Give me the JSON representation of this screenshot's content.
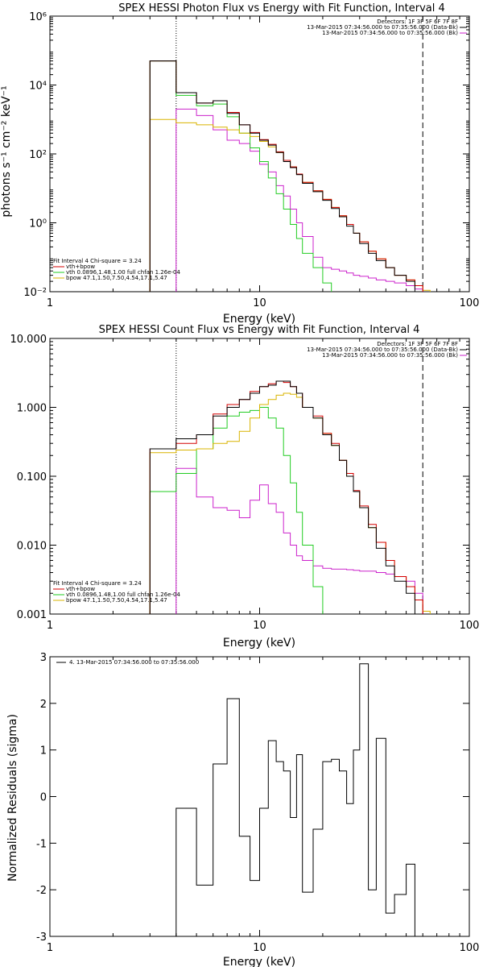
{
  "colors": {
    "data": "#000000",
    "total": "#d40000",
    "vth": "#22cc22",
    "bpow": "#d9b400",
    "bk": "#cc22cc"
  },
  "chart_data": [
    {
      "type": "line",
      "title": "SPEX HESSI Photon Flux vs Energy with Fit Function, Interval 4",
      "xlabel": "Energy (keV)",
      "ylabel": "photons s⁻¹ cm⁻² keV⁻¹",
      "x_scale": "log",
      "y_scale": "log",
      "xlim": [
        1,
        100
      ],
      "ylim": [
        0.01,
        1000000
      ],
      "x_ticks": [
        1,
        10,
        100
      ],
      "x_tick_labels": [
        "1",
        "10",
        "100"
      ],
      "y_ticks": [
        0.01,
        1,
        100,
        10000,
        1000000
      ],
      "y_tick_labels": [
        "10⁻²",
        "10⁰",
        "10²",
        "10⁴",
        "10⁶"
      ],
      "vlines": [
        4,
        60
      ],
      "legend_top": [
        "Detectors: 1F 3F 5F 6F 7F 8F",
        "13-Mar-2015 07:34:56.000 to 07:35:56.000 (Data-Bk)",
        "13-Mar-2015 07:34:56.000 to 07:35:56.000 (Bk)"
      ],
      "legend_bottom": [
        "Fit Interval 4   Chi-square = 3.24",
        "vth+bpow",
        "vth 0.0896,1.48,1.00  full chfan 1.26e-04",
        "bpow 47.1,1.50,7.50,4.54,17.1,5.47"
      ],
      "edges": [
        3,
        4,
        5,
        6,
        7,
        8,
        9,
        10,
        11,
        12,
        13,
        14,
        15,
        16,
        18,
        20,
        22,
        24,
        26,
        28,
        30,
        33,
        36,
        40,
        44,
        50,
        55,
        60,
        65,
        70
      ],
      "series": [
        {
          "name": "Data-Bk",
          "color_key": "data",
          "values": [
            50000,
            6000,
            3000,
            3500,
            1500,
            700,
            400,
            250,
            180,
            110,
            60,
            40,
            25,
            14,
            8,
            4.5,
            2.6,
            1.5,
            0.8,
            0.5,
            0.25,
            0.13,
            0.08,
            0.05,
            0.03,
            0.02,
            null,
            null,
            null
          ]
        },
        {
          "name": "vth+bpow",
          "color_key": "total",
          "values": [
            50000,
            6000,
            3000,
            3500,
            1600,
            700,
            420,
            260,
            190,
            115,
            65,
            42,
            26,
            15,
            8.5,
            4.8,
            2.8,
            1.6,
            0.9,
            0.5,
            0.28,
            0.15,
            0.09,
            0.05,
            0.03,
            0.022,
            0.015,
            null,
            null
          ]
        },
        {
          "name": "vth",
          "color_key": "vth",
          "values": [
            50000,
            5000,
            2500,
            2800,
            1200,
            400,
            150,
            60,
            20,
            7,
            2.5,
            0.9,
            0.35,
            0.13,
            0.05,
            0.018,
            null,
            null,
            null,
            null,
            null,
            null,
            null,
            null,
            null,
            null,
            null,
            null,
            null
          ]
        },
        {
          "name": "bpow",
          "color_key": "bpow",
          "values": [
            1000,
            800,
            700,
            600,
            500,
            400,
            320,
            230,
            160,
            110,
            65,
            42,
            26,
            15,
            8.5,
            4.8,
            2.8,
            1.6,
            0.9,
            0.5,
            0.28,
            0.15,
            0.09,
            0.05,
            0.03,
            0.022,
            0.015,
            0.011,
            null
          ]
        },
        {
          "name": "Bk",
          "color_key": "bk",
          "values": [
            null,
            2000,
            1300,
            500,
            250,
            200,
            120,
            50,
            30,
            12,
            6,
            2.5,
            1,
            0.4,
            0.1,
            0.05,
            0.045,
            0.04,
            0.035,
            0.03,
            0.028,
            0.025,
            0.022,
            0.02,
            0.018,
            0.015,
            0.012,
            null,
            null
          ]
        }
      ]
    },
    {
      "type": "line",
      "title": "SPEX HESSI Count Flux vs Energy with Fit Function, Interval 4",
      "xlabel": "Energy (keV)",
      "ylabel": "",
      "x_scale": "log",
      "y_scale": "log",
      "xlim": [
        1,
        100
      ],
      "ylim": [
        0.001,
        10
      ],
      "x_ticks": [
        1,
        10,
        100
      ],
      "x_tick_labels": [
        "1",
        "10",
        "100"
      ],
      "y_ticks": [
        0.001,
        0.01,
        0.1,
        1,
        10
      ],
      "y_tick_labels": [
        "0.001",
        "0.010",
        "0.100",
        "1.000",
        "10.000"
      ],
      "vlines": [
        4,
        60
      ],
      "legend_top": [
        "Detectors: 1F 3F 5F 6F 7F 8F",
        "13-Mar-2015 07:34:56.000 to 07:35:56.000 (Data-Bk)",
        "13-Mar-2015 07:34:56.000 to 07:35:56.000 (Bk)"
      ],
      "legend_bottom": [
        "Fit Interval 4   Chi-square = 3.24",
        "vth+bpow",
        "vth 0.0896,1.48,1.00  full chfan 1.26e-04",
        "bpow 47.1,1.50,7.50,4.54,17.1,5.47"
      ],
      "edges": [
        3,
        4,
        5,
        6,
        7,
        8,
        9,
        10,
        11,
        12,
        13,
        14,
        15,
        16,
        18,
        20,
        22,
        24,
        26,
        28,
        30,
        33,
        36,
        40,
        44,
        50,
        55,
        60,
        65,
        70
      ],
      "series": [
        {
          "name": "Data-Bk",
          "color_key": "data",
          "values": [
            0.25,
            0.35,
            0.4,
            0.75,
            1.0,
            1.3,
            1.6,
            2.0,
            2.1,
            2.4,
            2.4,
            2.0,
            1.6,
            1.0,
            0.7,
            0.4,
            0.28,
            0.17,
            0.1,
            0.06,
            0.035,
            0.018,
            0.009,
            0.005,
            0.003,
            0.002,
            null,
            null,
            null
          ]
        },
        {
          "name": "vth+bpow",
          "color_key": "total",
          "values": [
            0.25,
            0.3,
            0.4,
            0.8,
            1.1,
            1.3,
            1.7,
            2.0,
            2.2,
            2.4,
            2.3,
            2.0,
            1.6,
            1.0,
            0.75,
            0.42,
            0.3,
            0.17,
            0.11,
            0.062,
            0.037,
            0.02,
            0.011,
            0.006,
            0.0035,
            0.0025,
            0.0016,
            null,
            null
          ]
        },
        {
          "name": "vth",
          "color_key": "vth",
          "values": [
            0.06,
            0.11,
            0.25,
            0.5,
            0.75,
            0.85,
            0.9,
            1.0,
            0.7,
            0.5,
            0.2,
            0.08,
            0.03,
            0.01,
            0.0025,
            null,
            null,
            null,
            null,
            null,
            null,
            null,
            null,
            null,
            null,
            null,
            null,
            null,
            null
          ]
        },
        {
          "name": "bpow",
          "color_key": "bpow",
          "values": [
            0.22,
            0.24,
            0.25,
            0.3,
            0.32,
            0.45,
            0.7,
            1.1,
            1.3,
            1.5,
            1.6,
            1.55,
            1.4,
            1.0,
            0.7,
            0.42,
            0.28,
            0.17,
            0.1,
            0.06,
            0.035,
            0.018,
            0.011,
            0.006,
            0.0035,
            0.0025,
            0.0016,
            0.0011,
            null
          ]
        },
        {
          "name": "Bk",
          "color_key": "bk",
          "values": [
            null,
            0.13,
            0.05,
            0.035,
            0.032,
            0.025,
            0.045,
            0.075,
            0.04,
            0.03,
            0.015,
            0.01,
            0.007,
            0.006,
            0.005,
            0.0046,
            0.0045,
            0.0045,
            0.0044,
            0.0043,
            0.0042,
            0.0042,
            0.004,
            0.0038,
            0.0035,
            0.003,
            0.002,
            null,
            null
          ]
        }
      ]
    },
    {
      "type": "line",
      "title": "",
      "xlabel": "Energy (keV)",
      "ylabel": "Normalized Residuals (sigma)",
      "x_scale": "log",
      "y_scale": "linear",
      "xlim": [
        1,
        100
      ],
      "ylim": [
        -3,
        3
      ],
      "x_ticks": [
        1,
        10,
        100
      ],
      "x_tick_labels": [
        "1",
        "10",
        "100"
      ],
      "y_ticks": [
        -3,
        -2,
        -1,
        0,
        1,
        2,
        3
      ],
      "y_tick_labels": [
        "-3",
        "-2",
        "-1",
        "0",
        "1",
        "2",
        "3"
      ],
      "legend_top": [
        "4. 13-Mar-2015 07:34:56.000 to 07:35:56.000"
      ],
      "edges": [
        4,
        5,
        6,
        7,
        8,
        9,
        10,
        11,
        12,
        13,
        14,
        15,
        16,
        18,
        20,
        22,
        24,
        26,
        28,
        30,
        33,
        36,
        40,
        44,
        50,
        55,
        60
      ],
      "series": [
        {
          "name": "4. 13-Mar-2015 07:34:56.000 to 07:35:56.000",
          "color_key": "data",
          "values": [
            -0.25,
            -1.9,
            0.7,
            2.1,
            -0.85,
            -1.8,
            -0.25,
            1.2,
            0.75,
            0.55,
            -0.45,
            0.9,
            -2.05,
            -0.7,
            0.75,
            0.8,
            0.55,
            -0.15,
            1.0,
            2.85,
            -2.0,
            1.25,
            -2.5,
            -2.1,
            -1.45,
            null
          ]
        }
      ]
    }
  ]
}
